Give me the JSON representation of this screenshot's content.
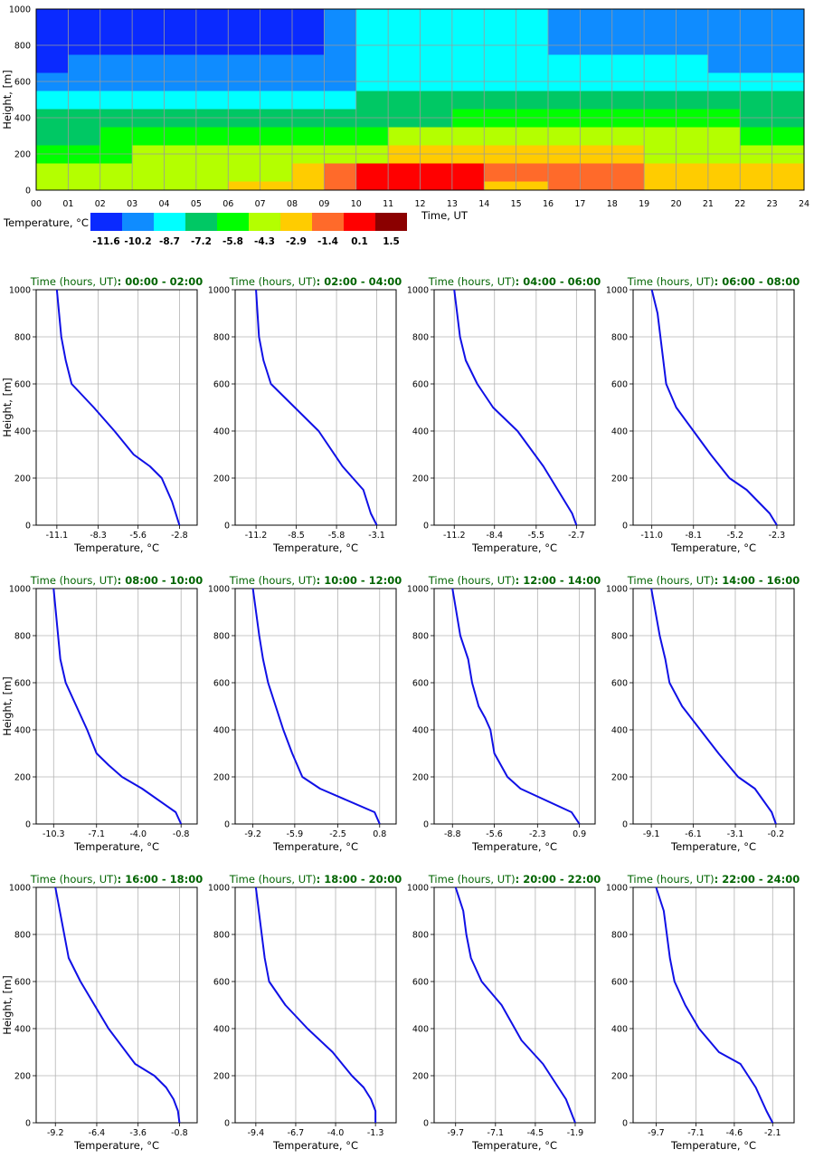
{
  "heatmap": {
    "ylabel": "Height, [m]",
    "xlabel": "Time, UT",
    "x_ticks": [
      "00",
      "01",
      "02",
      "03",
      "04",
      "05",
      "06",
      "07",
      "08",
      "09",
      "10",
      "11",
      "12",
      "13",
      "14",
      "15",
      "16",
      "17",
      "18",
      "19",
      "20",
      "21",
      "22",
      "23",
      "24"
    ],
    "y_ticks": [
      "0",
      "200",
      "400",
      "600",
      "800",
      "1000"
    ],
    "legend_title": "Temperature, °C",
    "legend_colors": [
      "#0a2aff",
      "#0f8cff",
      "#00ffff",
      "#00c864",
      "#00ff00",
      "#b4ff00",
      "#ffcc00",
      "#ff6a2a",
      "#ff0000",
      "#8b0000"
    ],
    "legend_values": [
      "-11.6",
      "-10.2",
      "-8.7",
      "-7.2",
      "-5.8",
      "-4.3",
      "-2.9",
      "-1.4",
      "0.1",
      "1.5"
    ]
  },
  "profile_common": {
    "ylabel": "Height, [m]",
    "xlabel": "Temperature, °C",
    "title_prefix": "Time (hours, UT)",
    "y_ticks": [
      "0",
      "200",
      "400",
      "600",
      "800",
      "1000"
    ]
  },
  "chart_data": [
    {
      "type": "heatmap",
      "xlabel": "Time, UT",
      "ylabel": "Height, [m]",
      "xlim": [
        0,
        24
      ],
      "ylim": [
        0,
        1000
      ],
      "colorbar_title": "Temperature, °C",
      "colorbar_ticks": [
        -11.6,
        -10.2,
        -8.7,
        -7.2,
        -5.8,
        -4.3,
        -2.9,
        -1.4,
        0.1,
        1.5
      ],
      "description_rows": "Color class index (0=-11.6 ... 9=1.5) by time (hourly, 0-23) for height bands 0-50, 50-150, 150-250, 250-350, 350-450, 450-550, 550-650, 650-750, 750-1000 m",
      "height_bands_m": [
        [
          0,
          50
        ],
        [
          50,
          150
        ],
        [
          150,
          250
        ],
        [
          250,
          350
        ],
        [
          350,
          450
        ],
        [
          450,
          550
        ],
        [
          550,
          650
        ],
        [
          650,
          750
        ],
        [
          750,
          1000
        ]
      ],
      "hours": [
        0,
        1,
        2,
        3,
        4,
        5,
        6,
        7,
        8,
        9,
        10,
        11,
        12,
        13,
        14,
        15,
        16,
        17,
        18,
        19,
        20,
        21,
        22,
        23
      ],
      "class_grid": [
        [
          5,
          5,
          5,
          5,
          5,
          5,
          6,
          6,
          6,
          7,
          8,
          8,
          8,
          8,
          6,
          6,
          7,
          7,
          7,
          6,
          6,
          6,
          6,
          6
        ],
        [
          5,
          5,
          5,
          5,
          5,
          5,
          5,
          5,
          6,
          7,
          8,
          8,
          8,
          8,
          7,
          7,
          7,
          7,
          7,
          6,
          6,
          6,
          6,
          6
        ],
        [
          4,
          4,
          4,
          5,
          5,
          5,
          5,
          5,
          5,
          5,
          5,
          6,
          6,
          6,
          6,
          6,
          6,
          6,
          6,
          5,
          5,
          5,
          5,
          5
        ],
        [
          3,
          3,
          4,
          4,
          4,
          4,
          4,
          4,
          4,
          4,
          4,
          5,
          5,
          5,
          5,
          5,
          5,
          5,
          5,
          5,
          5,
          5,
          4,
          4
        ],
        [
          3,
          3,
          3,
          3,
          3,
          3,
          3,
          3,
          3,
          3,
          3,
          3,
          3,
          4,
          4,
          4,
          4,
          4,
          4,
          4,
          4,
          4,
          3,
          3
        ],
        [
          2,
          2,
          2,
          2,
          2,
          2,
          2,
          2,
          2,
          2,
          3,
          3,
          3,
          3,
          3,
          3,
          3,
          3,
          3,
          3,
          3,
          3,
          3,
          3
        ],
        [
          1,
          1,
          1,
          1,
          1,
          1,
          1,
          1,
          1,
          1,
          2,
          2,
          2,
          2,
          2,
          2,
          2,
          2,
          2,
          2,
          2,
          2,
          2,
          2
        ],
        [
          0,
          1,
          1,
          1,
          1,
          1,
          1,
          1,
          1,
          1,
          2,
          2,
          2,
          2,
          2,
          2,
          2,
          2,
          2,
          2,
          2,
          1,
          1,
          1
        ],
        [
          0,
          0,
          0,
          0,
          0,
          0,
          0,
          0,
          0,
          1,
          2,
          2,
          2,
          2,
          2,
          2,
          1,
          1,
          1,
          1,
          1,
          1,
          1,
          1
        ]
      ]
    },
    {
      "type": "line",
      "title": "00:00 - 02:00",
      "xlabel": "Temperature, °C",
      "ylabel": "Height, [m]",
      "xlim": [
        -12.5,
        -1.6
      ],
      "ylim": [
        0,
        1000
      ],
      "x_ticks": [
        -11.1,
        -8.3,
        -5.6,
        -2.8
      ],
      "x": [
        -2.8,
        -3.3,
        -4.0,
        -4.8,
        -5.9,
        -7.2,
        -8.6,
        -10.1,
        -10.5,
        -10.8,
        -11.1
      ],
      "y": [
        0,
        100,
        200,
        250,
        300,
        400,
        500,
        600,
        700,
        800,
        1000
      ]
    },
    {
      "type": "line",
      "title": "02:00 - 04:00",
      "xlabel": "Temperature, °C",
      "ylabel": "Height, [m]",
      "xlim": [
        -12.6,
        -1.8
      ],
      "ylim": [
        0,
        1000
      ],
      "x_ticks": [
        -11.2,
        -8.5,
        -5.8,
        -3.1
      ],
      "x": [
        -3.1,
        -3.5,
        -4.0,
        -4.7,
        -5.4,
        -7.0,
        -8.6,
        -10.2,
        -10.7,
        -11.0,
        -11.2
      ],
      "y": [
        0,
        50,
        150,
        200,
        250,
        400,
        500,
        600,
        700,
        800,
        1000
      ]
    },
    {
      "type": "line",
      "title": "04:00 - 06:00",
      "xlabel": "Temperature, °C",
      "ylabel": "Height, [m]",
      "xlim": [
        -12.6,
        -1.4
      ],
      "ylim": [
        0,
        1000
      ],
      "x_ticks": [
        -11.2,
        -8.4,
        -5.5,
        -2.7
      ],
      "x": [
        -2.7,
        -3.0,
        -4.0,
        -5.0,
        -6.8,
        -8.5,
        -9.6,
        -10.4,
        -10.8,
        -11.0,
        -11.2
      ],
      "y": [
        0,
        50,
        150,
        250,
        400,
        500,
        600,
        700,
        800,
        900,
        1000
      ]
    },
    {
      "type": "line",
      "title": "06:00 - 08:00",
      "xlabel": "Temperature, °C",
      "ylabel": "Height, [m]",
      "xlim": [
        -12.3,
        -1.1
      ],
      "ylim": [
        0,
        1000
      ],
      "x_ticks": [
        -11.0,
        -8.1,
        -5.2,
        -2.3
      ],
      "x": [
        -2.3,
        -2.8,
        -4.4,
        -5.6,
        -6.9,
        -8.1,
        -9.3,
        -10.0,
        -10.2,
        -10.6,
        -11.0
      ],
      "y": [
        0,
        50,
        150,
        200,
        300,
        400,
        500,
        600,
        700,
        900,
        1000
      ]
    },
    {
      "type": "line",
      "title": "08:00 - 10:00",
      "xlabel": "Temperature, °C",
      "ylabel": "Height, [m]",
      "xlim": [
        -11.6,
        0.4
      ],
      "ylim": [
        0,
        1000
      ],
      "x_ticks": [
        -10.3,
        -7.1,
        -4.0,
        -0.8
      ],
      "x": [
        -0.8,
        -1.2,
        -3.7,
        -5.2,
        -6.2,
        -7.1,
        -7.8,
        -8.6,
        -9.4,
        -9.8,
        -10.3
      ],
      "y": [
        0,
        50,
        150,
        200,
        250,
        300,
        400,
        500,
        600,
        700,
        1000
      ]
    },
    {
      "type": "line",
      "title": "10:00 - 12:00",
      "xlabel": "Temperature, °C",
      "ylabel": "Height, [m]",
      "xlim": [
        -10.6,
        2.1
      ],
      "ylim": [
        0,
        1000
      ],
      "x_ticks": [
        -9.2,
        -5.9,
        -2.5,
        0.8
      ],
      "x": [
        0.8,
        0.4,
        -3.9,
        -5.3,
        -6.1,
        -6.8,
        -7.4,
        -8.0,
        -8.4,
        -8.7,
        -9.2
      ],
      "y": [
        0,
        50,
        150,
        200,
        300,
        400,
        500,
        600,
        700,
        800,
        1000
      ]
    },
    {
      "type": "line",
      "title": "12:00 - 14:00",
      "xlabel": "Temperature, °C",
      "ylabel": "Height, [m]",
      "xlim": [
        -10.2,
        2.1
      ],
      "ylim": [
        0,
        1000
      ],
      "x_ticks": [
        -8.8,
        -5.6,
        -2.3,
        0.9
      ],
      "x": [
        0.9,
        0.3,
        -3.6,
        -4.6,
        -5.6,
        -5.9,
        -6.3,
        -6.8,
        -7.3,
        -7.6,
        -8.2,
        -8.8
      ],
      "y": [
        0,
        50,
        150,
        200,
        300,
        400,
        450,
        500,
        600,
        700,
        800,
        1000
      ]
    },
    {
      "type": "line",
      "title": "14:00 - 16:00",
      "xlabel": "Temperature, °C",
      "ylabel": "Height, [m]",
      "xlim": [
        -10.4,
        1.1
      ],
      "ylim": [
        0,
        1000
      ],
      "x_ticks": [
        -9.1,
        -6.1,
        -3.1,
        -0.2
      ],
      "x": [
        -0.2,
        -0.5,
        -1.7,
        -2.9,
        -4.3,
        -5.6,
        -6.9,
        -7.8,
        -8.1,
        -8.5,
        -9.1
      ],
      "y": [
        0,
        50,
        150,
        200,
        300,
        400,
        500,
        600,
        700,
        800,
        1000
      ]
    },
    {
      "type": "line",
      "title": "16:00 - 18:00",
      "xlabel": "Temperature, °C",
      "ylabel": "Height, [m]",
      "xlim": [
        -10.5,
        0.4
      ],
      "ylim": [
        0,
        1000
      ],
      "x_ticks": [
        -9.2,
        -6.4,
        -3.6,
        -0.8
      ],
      "x": [
        -0.8,
        -0.9,
        -1.2,
        -1.7,
        -2.5,
        -3.8,
        -5.6,
        -7.5,
        -8.3,
        -8.9,
        -9.2
      ],
      "y": [
        0,
        50,
        100,
        150,
        200,
        250,
        400,
        600,
        700,
        900,
        1000
      ]
    },
    {
      "type": "line",
      "title": "18:00 - 20:00",
      "xlabel": "Temperature, °C",
      "ylabel": "Height, [m]",
      "xlim": [
        -10.8,
        0.1
      ],
      "ylim": [
        0,
        1000
      ],
      "x_ticks": [
        -9.4,
        -6.7,
        -4.0,
        -1.3
      ],
      "x": [
        -1.3,
        -1.3,
        -1.6,
        -2.1,
        -2.9,
        -4.2,
        -5.9,
        -7.4,
        -8.5,
        -8.8,
        -9.4
      ],
      "y": [
        0,
        50,
        100,
        150,
        200,
        300,
        400,
        500,
        600,
        700,
        1000
      ]
    },
    {
      "type": "line",
      "title": "20:00 - 22:00",
      "xlabel": "Temperature, °C",
      "ylabel": "Height, [m]",
      "xlim": [
        -11.1,
        -0.6
      ],
      "ylim": [
        0,
        1000
      ],
      "x_ticks": [
        -9.7,
        -7.1,
        -4.5,
        -1.9
      ],
      "x": [
        -1.9,
        -2.2,
        -2.5,
        -3.0,
        -4.0,
        -5.4,
        -6.7,
        -8.0,
        -8.7,
        -9.0,
        -9.2,
        -9.7
      ],
      "y": [
        0,
        50,
        100,
        150,
        250,
        350,
        500,
        600,
        700,
        800,
        900,
        1000
      ]
    },
    {
      "type": "line",
      "title": "22:00 - 24:00",
      "xlabel": "Temperature, °C",
      "ylabel": "Height, [m]",
      "xlim": [
        -11.2,
        -0.7
      ],
      "ylim": [
        0,
        1000
      ],
      "x_ticks": [
        -9.7,
        -7.1,
        -4.6,
        -2.1
      ],
      "x": [
        -2.1,
        -2.5,
        -3.2,
        -4.2,
        -5.6,
        -6.9,
        -7.8,
        -8.5,
        -8.8,
        -9.2,
        -9.7
      ],
      "y": [
        0,
        50,
        150,
        250,
        300,
        400,
        500,
        600,
        700,
        900,
        1000
      ]
    }
  ]
}
